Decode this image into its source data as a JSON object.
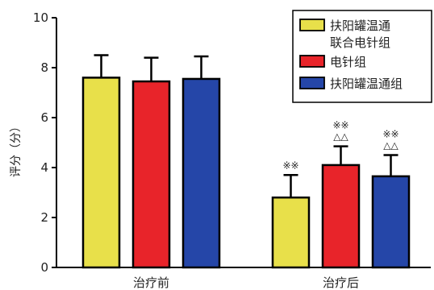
{
  "chart_data": {
    "type": "bar",
    "categories": [
      "治疗前",
      "治疗后"
    ],
    "ylabel": "评分（分）",
    "ylim": [
      0,
      10
    ],
    "yticks": [
      0,
      2,
      4,
      6,
      8,
      10
    ],
    "legend_position": "top-right",
    "series": [
      {
        "name": "扶阳罐温通联合电针组",
        "color": "#e8e04a",
        "values": [
          7.6,
          2.8
        ],
        "errors": [
          0.9,
          0.9
        ],
        "annotations": [
          "",
          "※※"
        ]
      },
      {
        "name": "电针组",
        "color": "#e8242a",
        "values": [
          7.45,
          4.1
        ],
        "errors": [
          0.95,
          0.75
        ],
        "annotations": [
          "",
          "※※\n△△"
        ]
      },
      {
        "name": "扶阳罐温通组",
        "color": "#2546a8",
        "values": [
          7.55,
          3.65
        ],
        "errors": [
          0.9,
          0.85
        ],
        "annotations": [
          "",
          "※※\n△△"
        ]
      }
    ],
    "legend_lines": [
      [
        "扶阳罐温通",
        "联合电针组"
      ],
      [
        "电针组"
      ],
      [
        "扶阳罐温通组"
      ]
    ]
  }
}
